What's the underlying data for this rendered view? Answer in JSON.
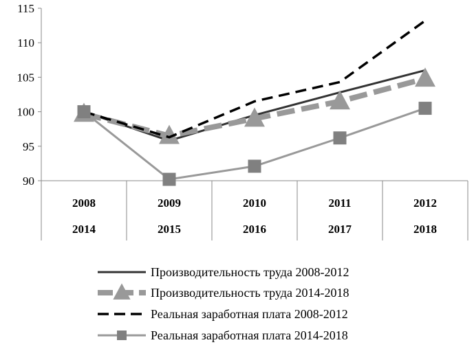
{
  "chart_data": {
    "type": "line",
    "categories_row1": [
      "2008",
      "2009",
      "2010",
      "2011",
      "2012"
    ],
    "categories_row2": [
      "2014",
      "2015",
      "2016",
      "2017",
      "2018"
    ],
    "ylim": [
      90,
      115
    ],
    "yticks": [
      "90",
      "95",
      "100",
      "105",
      "110",
      "115"
    ],
    "series": [
      {
        "name": "Производительность труда 2008-2012",
        "values": [
          100,
          95.8,
          99.5,
          102.8,
          106.0
        ],
        "color": "#333333",
        "style": "solid",
        "marker": "none"
      },
      {
        "name": "Производительность труда 2014-2018",
        "values": [
          99.7,
          96.5,
          99.0,
          101.5,
          104.8
        ],
        "color": "#999999",
        "style": "thick-dashed",
        "marker": "triangle"
      },
      {
        "name": "Реальная заработная плата 2008-2012",
        "values": [
          100,
          96.3,
          101.5,
          104.3,
          113.2
        ],
        "color": "#000000",
        "style": "dashed",
        "marker": "none"
      },
      {
        "name": "Реальная заработная плата 2014-2018",
        "values": [
          100,
          90.2,
          92.1,
          96.2,
          100.5
        ],
        "color": "#999999",
        "style": "solid",
        "marker": "square"
      }
    ]
  }
}
